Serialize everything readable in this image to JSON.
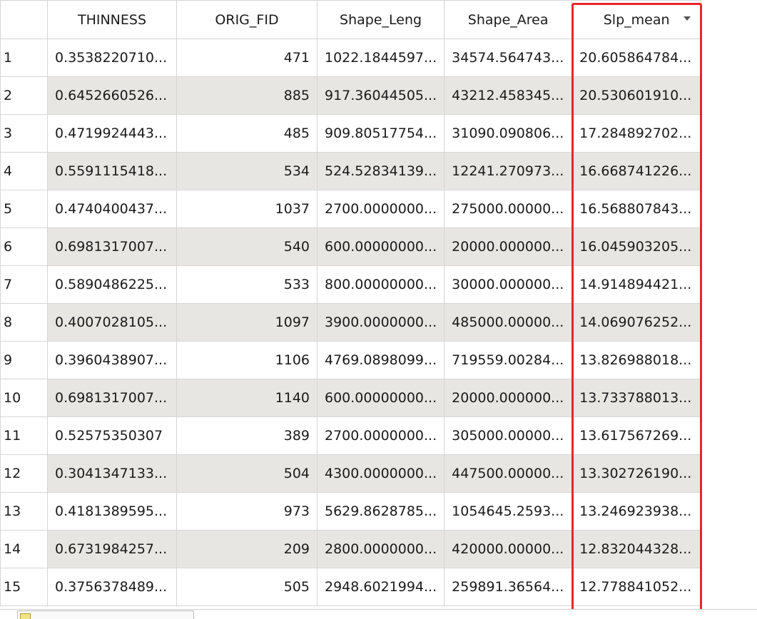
{
  "table": {
    "columns": [
      "THINNESS",
      "ORIG_FID",
      "Shape_Leng",
      "Shape_Area",
      "Slp_mean"
    ],
    "sorted_column": "Slp_mean",
    "rows": [
      {
        "n": "1",
        "thinness": "0.3538220710...",
        "orig_fid": "471",
        "shape_leng": "1022.1844597...",
        "shape_area": "34574.564743...",
        "slp_mean": "20.605864784..."
      },
      {
        "n": "2",
        "thinness": "0.6452660526...",
        "orig_fid": "885",
        "shape_leng": "917.36044505...",
        "shape_area": "43212.458345...",
        "slp_mean": "20.530601910..."
      },
      {
        "n": "3",
        "thinness": "0.4719924443...",
        "orig_fid": "485",
        "shape_leng": "909.80517754...",
        "shape_area": "31090.090806...",
        "slp_mean": "17.284892702..."
      },
      {
        "n": "4",
        "thinness": "0.5591115418...",
        "orig_fid": "534",
        "shape_leng": "524.52834139...",
        "shape_area": "12241.270973...",
        "slp_mean": "16.668741226..."
      },
      {
        "n": "5",
        "thinness": "0.4740400437...",
        "orig_fid": "1037",
        "shape_leng": "2700.0000000...",
        "shape_area": "275000.00000...",
        "slp_mean": "16.568807843..."
      },
      {
        "n": "6",
        "thinness": "0.6981317007...",
        "orig_fid": "540",
        "shape_leng": "600.00000000...",
        "shape_area": "20000.000000...",
        "slp_mean": "16.045903205..."
      },
      {
        "n": "7",
        "thinness": "0.5890486225...",
        "orig_fid": "533",
        "shape_leng": "800.00000000...",
        "shape_area": "30000.000000...",
        "slp_mean": "14.914894421..."
      },
      {
        "n": "8",
        "thinness": "0.4007028105...",
        "orig_fid": "1097",
        "shape_leng": "3900.0000000...",
        "shape_area": "485000.00000...",
        "slp_mean": "14.069076252..."
      },
      {
        "n": "9",
        "thinness": "0.3960438907...",
        "orig_fid": "1106",
        "shape_leng": "4769.0898099...",
        "shape_area": "719559.00284...",
        "slp_mean": "13.826988018..."
      },
      {
        "n": "10",
        "thinness": "0.6981317007...",
        "orig_fid": "1140",
        "shape_leng": "600.00000000...",
        "shape_area": "20000.000000...",
        "slp_mean": "13.733788013..."
      },
      {
        "n": "11",
        "thinness": "0.52575350307",
        "orig_fid": "389",
        "shape_leng": "2700.0000000...",
        "shape_area": "305000.00000...",
        "slp_mean": "13.617567269..."
      },
      {
        "n": "12",
        "thinness": "0.3041347133...",
        "orig_fid": "504",
        "shape_leng": "4300.0000000...",
        "shape_area": "447500.00000...",
        "slp_mean": "13.302726190..."
      },
      {
        "n": "13",
        "thinness": "0.4181389595...",
        "orig_fid": "973",
        "shape_leng": "5629.8628785...",
        "shape_area": "1054645.2593...",
        "slp_mean": "13.246923938..."
      },
      {
        "n": "14",
        "thinness": "0.6731984257...",
        "orig_fid": "209",
        "shape_leng": "2800.0000000...",
        "shape_area": "420000.00000...",
        "slp_mean": "12.832044328..."
      },
      {
        "n": "15",
        "thinness": "0.3756378489...",
        "orig_fid": "505",
        "shape_leng": "2948.6021994...",
        "shape_area": "259891.36564...",
        "slp_mean": "12.778841052..."
      }
    ]
  },
  "colors": {
    "highlight_border": "#e8252a",
    "alt_row": "#e8e6e3",
    "grid_line": "#d6d6d6"
  },
  "icons": {
    "sort": "chevron-down-icon",
    "bottom": "table-icon"
  }
}
